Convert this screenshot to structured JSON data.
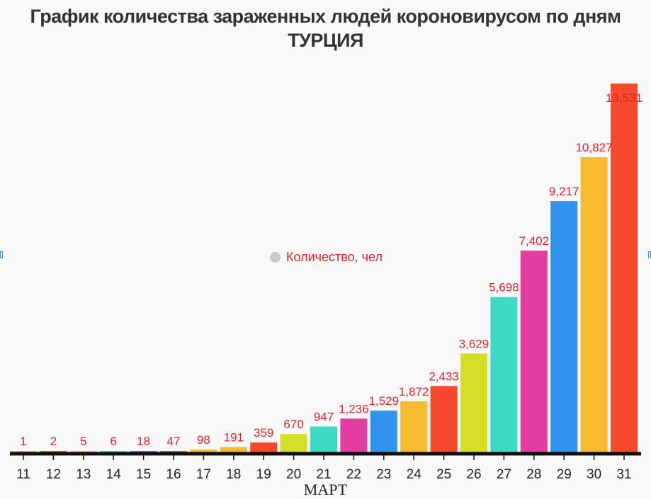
{
  "chart_data": {
    "type": "bar",
    "title": "График количества зараженных людей короновирусом по дням",
    "subtitle": "ТУРЦИЯ",
    "xlabel": "МАРТ",
    "ylabel": "",
    "legend": {
      "label": "Количество, чел",
      "position": "center"
    },
    "categories": [
      "11",
      "12",
      "13",
      "14",
      "15",
      "16",
      "17",
      "18",
      "19",
      "20",
      "21",
      "22",
      "23",
      "24",
      "25",
      "26",
      "27",
      "28",
      "29",
      "30",
      "31"
    ],
    "values": [
      1,
      2,
      5,
      6,
      18,
      47,
      98,
      191,
      359,
      670,
      947,
      1236,
      1529,
      1872,
      2433,
      3629,
      5698,
      7402,
      9217,
      10827,
      13531
    ],
    "value_labels": [
      "1",
      "2",
      "5",
      "6",
      "18",
      "47",
      "98",
      "191",
      "359",
      "670",
      "947",
      "1,236",
      "1,529",
      "1,872",
      "2,433",
      "3,629",
      "5,698",
      "7,402",
      "9,217",
      "10,827",
      "13,531"
    ],
    "colors": [
      "#f8ba2e",
      "#f74a2d",
      "#d5de24",
      "#3cdbc3",
      "#e43da1",
      "#3094ee",
      "#f8ba2e",
      "#f8ba2e",
      "#f74a2d",
      "#d5de24",
      "#3cdbc3",
      "#e43da1",
      "#3094ee",
      "#f8ba2e",
      "#f74a2d",
      "#d5de24",
      "#3cdbc3",
      "#e43da1",
      "#3094ee",
      "#f8ba2e",
      "#f74a2d"
    ],
    "ylim": [
      0,
      14000
    ],
    "grid": false
  }
}
